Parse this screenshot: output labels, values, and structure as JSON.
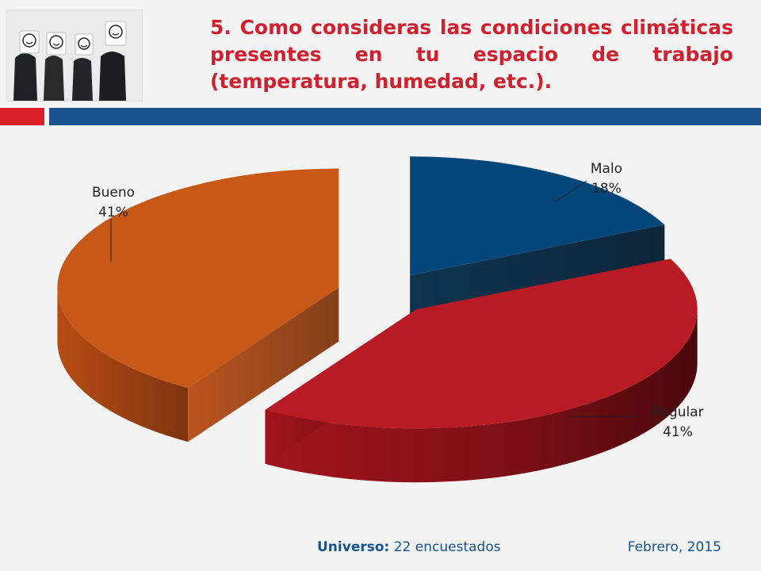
{
  "slide": {
    "title": "5. Como consideras las condiciones climáticas presentes en tu espacio de trabajo (temperatura, humedad, etc.).",
    "colors": {
      "title": "#d0202e",
      "accent_red": "#d92027",
      "accent_blue": "#16528f"
    }
  },
  "chart_data": {
    "type": "pie",
    "style": "3d-exploded",
    "categories": [
      "Malo",
      "Regular",
      "Bueno"
    ],
    "values": [
      18,
      41,
      41
    ],
    "labels": [
      "18%",
      "41%",
      "41%"
    ],
    "colors": [
      "#03477a",
      "#b81b24",
      "#c85818"
    ]
  },
  "footer": {
    "universe_label": "Universo:",
    "universe_value": "22 encuestados",
    "date": "Febrero, 2015"
  }
}
